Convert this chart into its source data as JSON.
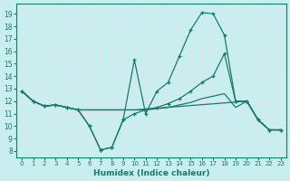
{
  "xlabel": "Humidex (Indice chaleur)",
  "bg_color": "#c8eef0",
  "grid_color": "#dde8e8",
  "line_color": "#1a7a6a",
  "xlim": [
    -0.5,
    23.5
  ],
  "ylim": [
    7.5,
    19.8
  ],
  "xticks": [
    0,
    1,
    2,
    3,
    4,
    5,
    6,
    7,
    8,
    9,
    10,
    11,
    12,
    13,
    14,
    15,
    16,
    17,
    18,
    19,
    20,
    21,
    22,
    23
  ],
  "yticks": [
    8,
    9,
    10,
    11,
    12,
    13,
    14,
    15,
    16,
    17,
    18,
    19
  ],
  "line1_x": [
    0,
    1,
    2,
    3,
    4,
    5,
    6,
    7,
    8,
    9,
    10,
    11,
    12,
    13,
    14,
    15,
    16,
    17,
    18,
    19,
    20,
    21,
    22,
    23
  ],
  "line1_y": [
    12.8,
    12.0,
    11.6,
    11.7,
    11.5,
    11.3,
    10.0,
    8.1,
    8.3,
    10.5,
    15.3,
    11.0,
    12.8,
    13.5,
    15.6,
    17.7,
    19.1,
    19.0,
    17.3,
    12.0,
    12.0,
    10.5,
    9.7,
    9.7
  ],
  "line2_x": [
    0,
    1,
    2,
    3,
    4,
    5,
    6,
    7,
    8,
    9,
    10,
    11,
    12,
    13,
    14,
    15,
    16,
    17,
    18,
    19,
    20,
    21,
    22,
    23
  ],
  "line2_y": [
    12.8,
    12.0,
    11.6,
    11.7,
    11.5,
    11.3,
    10.0,
    8.1,
    8.3,
    10.5,
    11.0,
    11.3,
    11.5,
    11.8,
    12.2,
    12.8,
    13.5,
    14.0,
    15.8,
    12.0,
    12.0,
    10.5,
    9.7,
    9.7
  ],
  "line3_x": [
    0,
    1,
    2,
    3,
    4,
    5,
    6,
    10,
    11,
    12,
    13,
    14,
    15,
    16,
    17,
    18,
    19,
    20,
    21,
    22,
    23
  ],
  "line3_y": [
    12.8,
    12.0,
    11.6,
    11.7,
    11.5,
    11.3,
    11.3,
    11.3,
    11.3,
    11.4,
    11.5,
    11.7,
    11.9,
    12.2,
    12.4,
    12.6,
    11.5,
    12.0,
    10.5,
    9.7,
    9.7
  ],
  "line4_x": [
    0,
    1,
    2,
    3,
    4,
    5,
    6,
    10,
    20,
    21,
    22,
    23
  ],
  "line4_y": [
    12.8,
    12.0,
    11.6,
    11.7,
    11.5,
    11.3,
    11.3,
    11.3,
    12.0,
    10.5,
    9.7,
    9.7
  ]
}
